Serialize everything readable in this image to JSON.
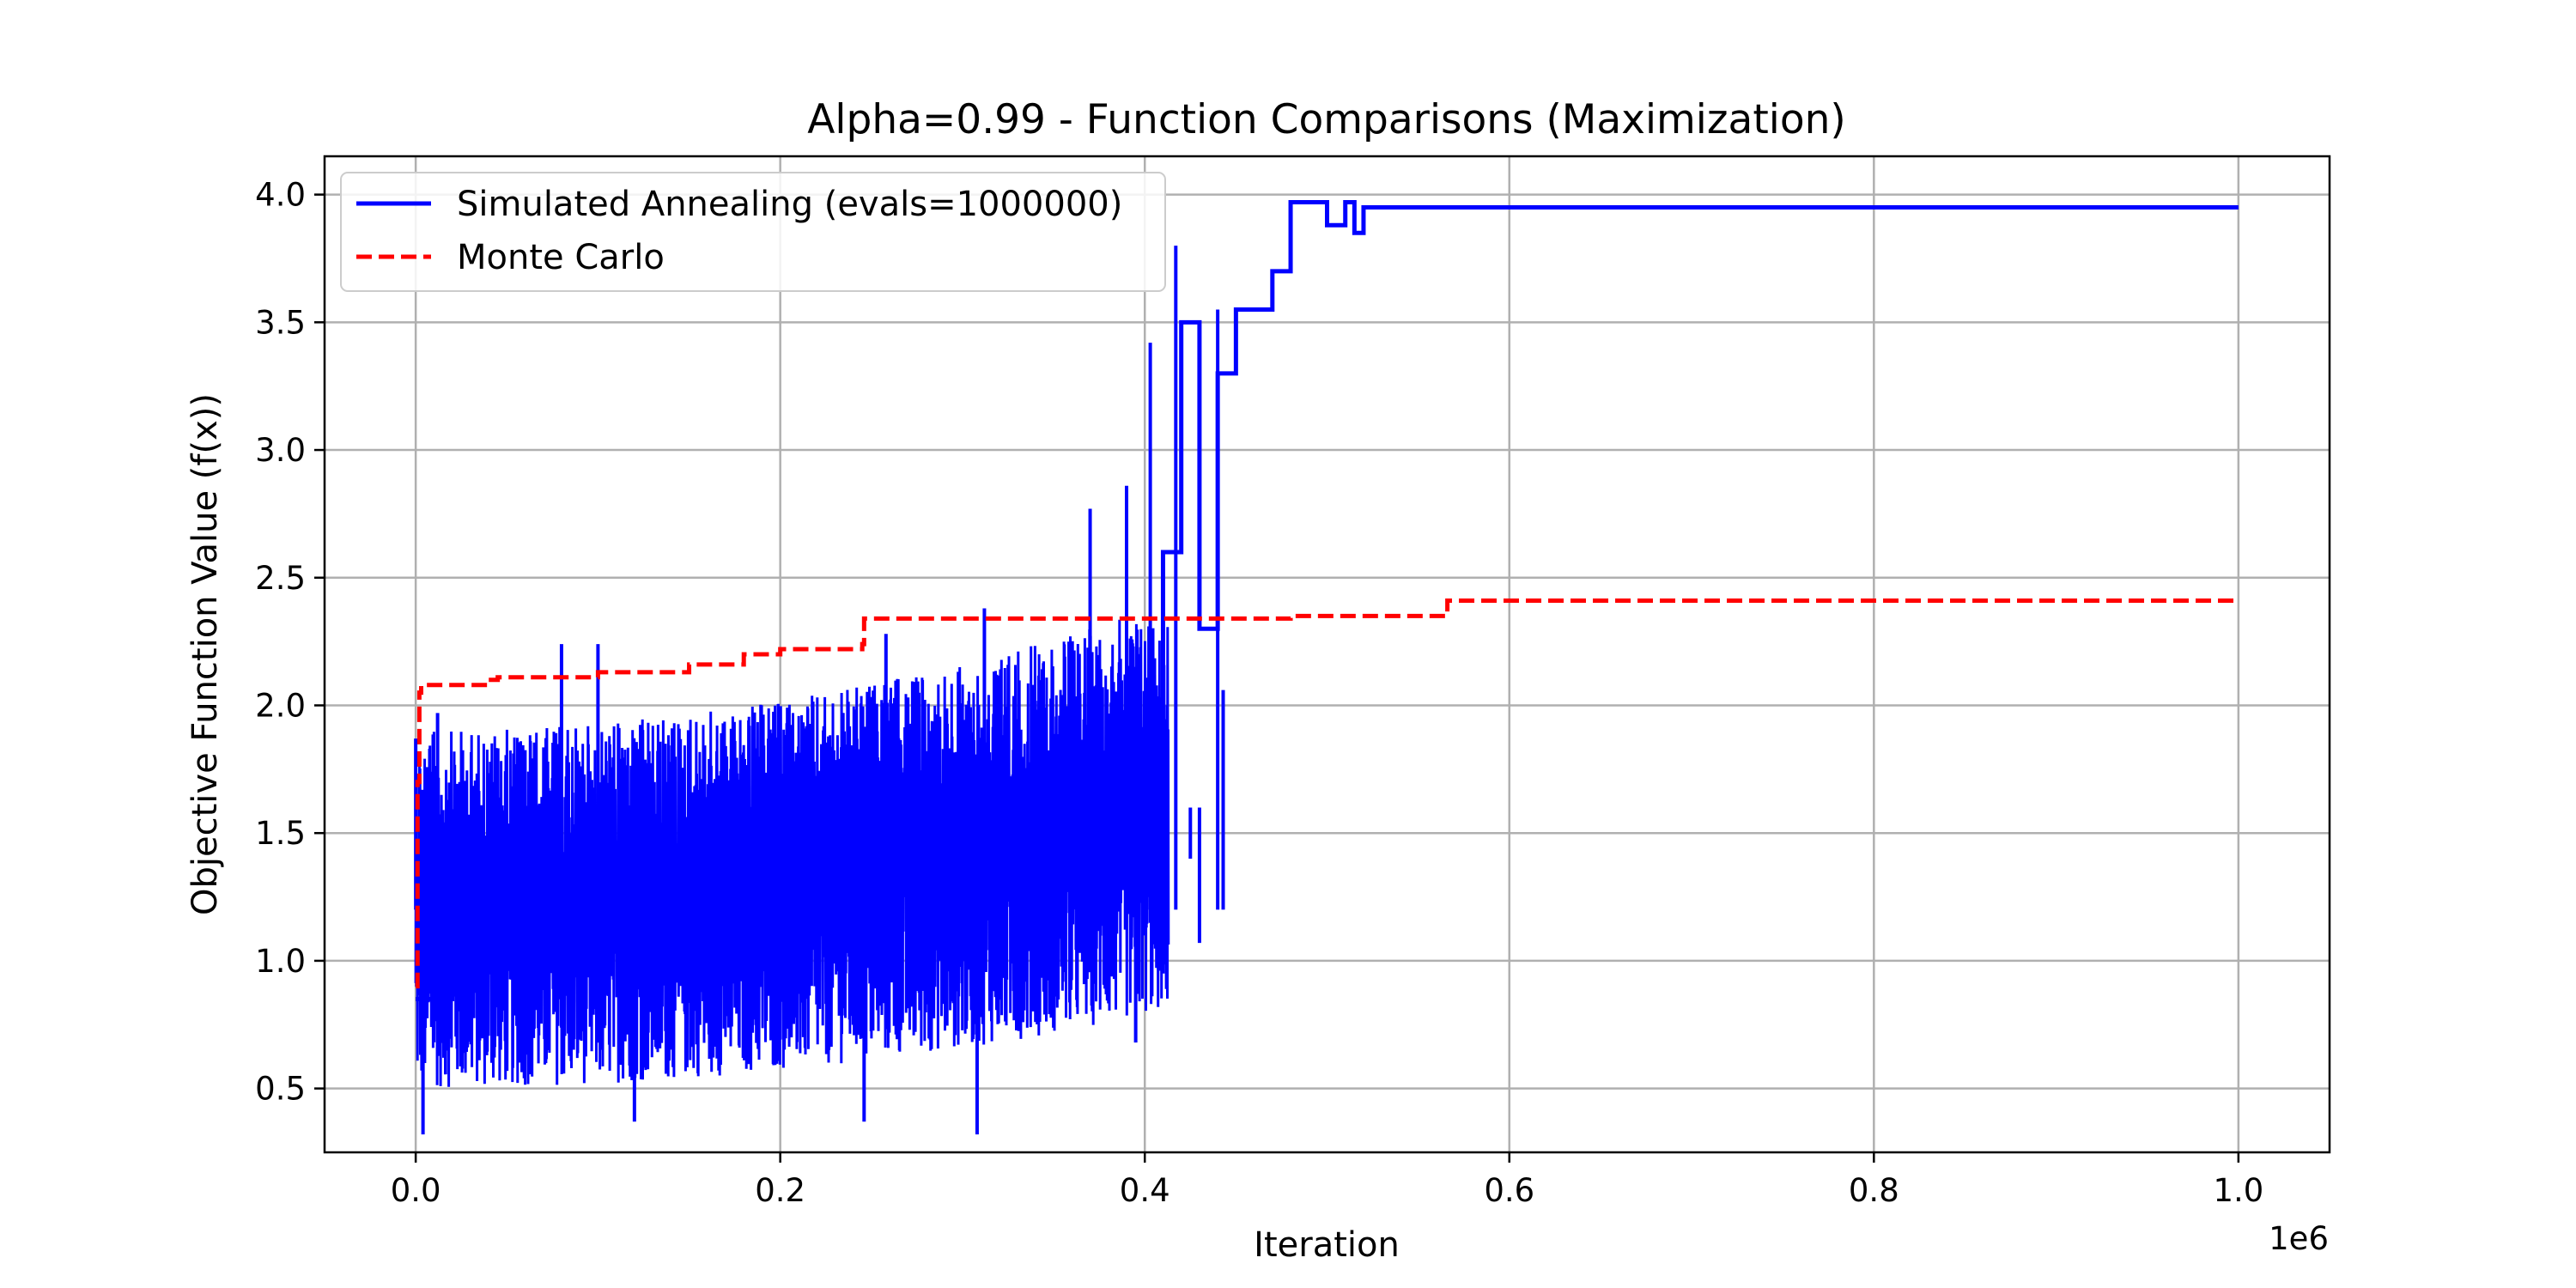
{
  "chart_data": {
    "type": "line",
    "title": "Alpha=0.99 - Function Comparisons (Maximization)",
    "xlabel": "Iteration",
    "ylabel": "Objective Function Value (f(x))",
    "x_offset_text": "1e6",
    "xlim": [
      -0.05,
      1.05
    ],
    "ylim": [
      0.25,
      4.15
    ],
    "x_scale_factor": 1000000,
    "xticks": [
      0.0,
      0.2,
      0.4,
      0.6,
      0.8,
      1.0
    ],
    "xtick_labels": [
      "0.0",
      "0.2",
      "0.4",
      "0.6",
      "0.8",
      "1.0"
    ],
    "yticks": [
      0.5,
      1.0,
      1.5,
      2.0,
      2.5,
      3.0,
      3.5,
      4.0
    ],
    "ytick_labels": [
      "0.5",
      "1.0",
      "1.5",
      "2.0",
      "2.5",
      "3.0",
      "3.5",
      "4.0"
    ],
    "grid": true,
    "legend_position": "top-left",
    "series": [
      {
        "name": "Simulated Annealing (evals=1000000)",
        "color": "#0000ff",
        "style": "solid",
        "x": [
          0.0,
          0.02,
          0.05,
          0.08,
          0.1,
          0.12,
          0.15,
          0.18,
          0.2,
          0.22,
          0.25,
          0.28,
          0.3,
          0.33,
          0.36,
          0.38,
          0.4,
          0.41,
          0.42,
          0.43,
          0.44,
          0.45,
          0.46,
          0.47,
          0.48,
          0.5,
          0.51,
          0.515,
          0.52,
          0.6,
          0.8,
          1.0
        ],
        "y": [
          0.85,
          1.3,
          1.35,
          1.3,
          1.4,
          1.35,
          1.3,
          1.35,
          1.4,
          1.4,
          1.45,
          1.45,
          1.5,
          1.5,
          1.6,
          1.7,
          1.8,
          2.6,
          3.5,
          2.3,
          3.3,
          3.55,
          3.55,
          3.7,
          3.97,
          3.88,
          3.97,
          3.85,
          3.95,
          3.95,
          3.95,
          3.95
        ],
        "band": {
          "x_start": 0.0,
          "x_end": 0.413,
          "low_start": 0.5,
          "low_end": 0.8,
          "high_start": 1.9,
          "high_end": 2.4
        },
        "spikes": [
          {
            "x": 0.0,
            "y": 1.87
          },
          {
            "x": 0.004,
            "y": 0.32
          },
          {
            "x": 0.012,
            "y": 1.97
          },
          {
            "x": 0.08,
            "y": 2.24
          },
          {
            "x": 0.1,
            "y": 2.24
          },
          {
            "x": 0.12,
            "y": 0.37
          },
          {
            "x": 0.246,
            "y": 0.37
          },
          {
            "x": 0.258,
            "y": 2.28
          },
          {
            "x": 0.308,
            "y": 0.32
          },
          {
            "x": 0.312,
            "y": 2.38
          },
          {
            "x": 0.37,
            "y": 2.77
          },
          {
            "x": 0.39,
            "y": 2.86
          },
          {
            "x": 0.395,
            "y": 0.68
          },
          {
            "x": 0.403,
            "y": 3.42
          },
          {
            "x": 0.41,
            "y": 0.95
          },
          {
            "x": 0.417,
            "y": 3.8
          },
          {
            "x": 0.425,
            "y": 1.4
          },
          {
            "x": 0.43,
            "y": 1.07
          },
          {
            "x": 0.44,
            "y": 3.55
          },
          {
            "x": 0.443,
            "y": 2.06
          }
        ]
      },
      {
        "name": "Monte Carlo",
        "color": "#ff0000",
        "style": "dashed",
        "x": [
          0.0,
          0.001,
          0.002,
          0.003,
          0.04,
          0.045,
          0.1,
          0.15,
          0.18,
          0.2,
          0.245,
          0.246,
          0.48,
          0.565,
          0.566,
          1.0
        ],
        "y": [
          0.9,
          1.7,
          2.05,
          2.08,
          2.1,
          2.11,
          2.13,
          2.16,
          2.2,
          2.22,
          2.24,
          2.34,
          2.35,
          2.35,
          2.41,
          2.41
        ]
      }
    ]
  }
}
